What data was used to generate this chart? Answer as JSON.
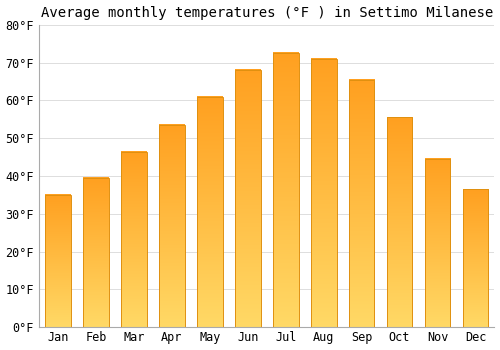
{
  "title": "Average monthly temperatures (°F ) in Settimo Milanese",
  "months": [
    "Jan",
    "Feb",
    "Mar",
    "Apr",
    "May",
    "Jun",
    "Jul",
    "Aug",
    "Sep",
    "Oct",
    "Nov",
    "Dec"
  ],
  "values": [
    35,
    39.5,
    46.5,
    53.5,
    61,
    68,
    72.5,
    71,
    65.5,
    55.5,
    44.5,
    36.5
  ],
  "bar_color_bottom": "#FFD966",
  "bar_color_top": "#FFA020",
  "bar_edge_color": "#E09010",
  "ylim": [
    0,
    80
  ],
  "yticks": [
    0,
    10,
    20,
    30,
    40,
    50,
    60,
    70,
    80
  ],
  "ytick_labels": [
    "0°F",
    "10°F",
    "20°F",
    "30°F",
    "40°F",
    "50°F",
    "60°F",
    "70°F",
    "80°F"
  ],
  "background_color": "#FFFFFF",
  "grid_color": "#DDDDDD",
  "title_fontsize": 10,
  "tick_fontsize": 8.5,
  "font_family": "monospace"
}
